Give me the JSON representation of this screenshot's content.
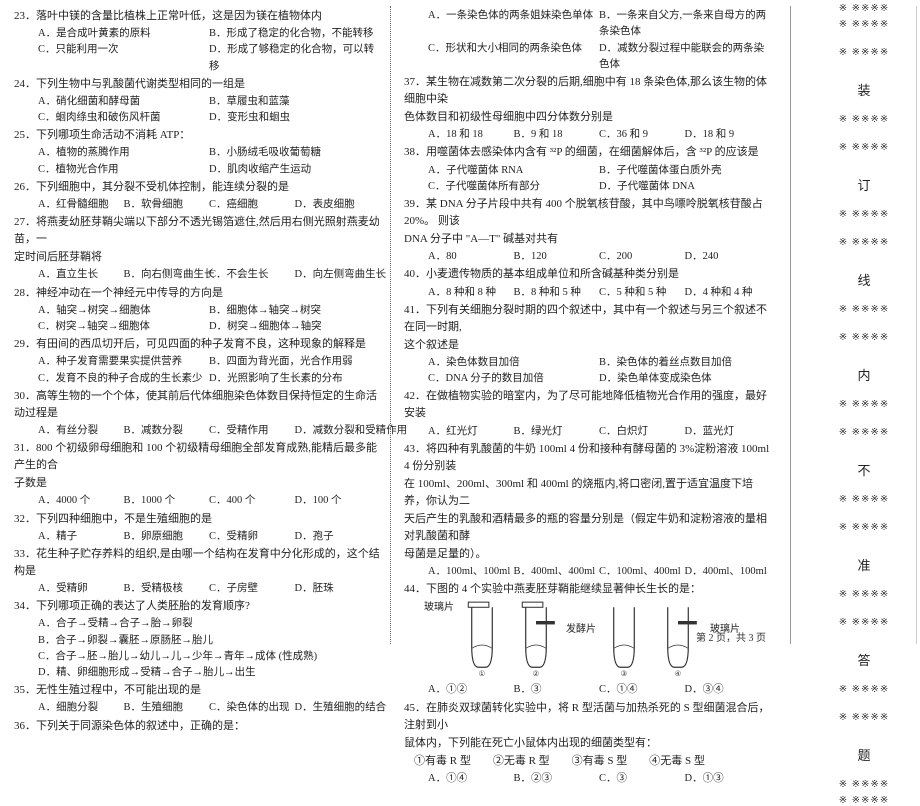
{
  "footer": "第 2 页，共 3 页",
  "margin": {
    "dot": "※ ※※※※",
    "chars": [
      "装",
      "订",
      "线",
      "内",
      "不",
      "准",
      "答",
      "题"
    ]
  },
  "left": [
    {
      "t": "q",
      "txt": "23．落叶中镁的含量比植株上正常叶低，这是因为镁在植物体内"
    },
    {
      "t": "o",
      "cols": 2,
      "items": [
        "A．是合成叶黄素的原料",
        "B．形成了稳定的化合物，不能转移",
        "C．只能利用一次",
        "D．形成了够稳定的化合物，可以转移"
      ]
    },
    {
      "t": "q",
      "txt": "24．下列生物中与乳酸菌代谢类型相同的一组是"
    },
    {
      "t": "o",
      "cols": 2,
      "items": [
        "A．硝化细菌和酵母菌",
        "B．草履虫和蓝藻",
        "C．蛔肉绦虫和破伤风杆菌",
        "D．变形虫和蛔虫"
      ]
    },
    {
      "t": "q",
      "txt": "25．下列哪项生命活动不消耗 ATP："
    },
    {
      "t": "o",
      "cols": 2,
      "items": [
        "A．植物的蒸腾作用",
        "B．小肠绒毛吸收葡萄糖",
        "C．植物光合作用",
        "D．肌肉收缩产生运动"
      ]
    },
    {
      "t": "q",
      "txt": "26．下列细胞中，其分裂不受机体控制，能连续分裂的是"
    },
    {
      "t": "o",
      "cols": 4,
      "items": [
        "A．红骨髓细胞",
        "B．软骨细胞",
        "C．癌细胞",
        "D．表皮细胞"
      ]
    },
    {
      "t": "q",
      "txt": "27．将燕麦幼胚芽鞘尖端以下部分不透光锡箔遮住,然后用右侧光照射燕麦幼苗，一"
    },
    {
      "t": "q",
      "txt": "定时间后胚芽鞘将"
    },
    {
      "t": "o",
      "cols": 4,
      "items": [
        "A．直立生长",
        "B．向右侧弯曲生长",
        "C．不会生长",
        "D．向左侧弯曲生长"
      ]
    },
    {
      "t": "q",
      "txt": "28．神经冲动在一个神经元中传导的方向是"
    },
    {
      "t": "o",
      "cols": 2,
      "items": [
        "A．轴突→树突→细胞体",
        "B．细胞体→轴突→树突",
        "C．树突→轴突→细胞体",
        "D．树突→细胞体→轴突"
      ]
    },
    {
      "t": "q",
      "txt": "29．有田间的西瓜切开后，可见四面的种子发育不良，这种现象的解释是"
    },
    {
      "t": "o",
      "cols": 2,
      "items": [
        "A．种子发育需要果实提供营养",
        "B．四面为背光面，光合作用弱",
        "C．发育不良的种子合成的生长素少",
        "D．光照影响了生长素的分布"
      ]
    },
    {
      "t": "q",
      "txt": "30．高等生物的一个个体，使其前后代体细胞染色体数目保持恒定的生命活动过程是"
    },
    {
      "t": "o",
      "cols": 4,
      "items": [
        "A．有丝分裂",
        "B．减数分裂",
        "C．受精作用",
        "D．减数分裂和受精作用"
      ]
    },
    {
      "t": "q",
      "txt": "31．800 个初级卵母细胞和 100 个初级精母细胞全部发育成熟,能精后最多能产生的合"
    },
    {
      "t": "q",
      "txt": "子数是"
    },
    {
      "t": "o",
      "cols": 4,
      "items": [
        "A．4000 个",
        "B．1000 个",
        "C．400 个",
        "D．100 个"
      ]
    },
    {
      "t": "q",
      "txt": "32．下列四种细胞中，不是生殖细胞的是"
    },
    {
      "t": "o",
      "cols": 4,
      "items": [
        "A．精子",
        "B．卵原细胞",
        "C．受精卵",
        "D．孢子"
      ]
    },
    {
      "t": "q",
      "txt": "33．花生种子贮存养料的组织,是由哪一个结构在发育中分化形成的，这个结构是"
    },
    {
      "t": "o",
      "cols": 4,
      "items": [
        "A．受精卵",
        "B．受精极核",
        "C．子房壁",
        "D．胚珠"
      ]
    },
    {
      "t": "q",
      "txt": "34．下列哪项正确的表达了人类胚胎的发育顺序?"
    },
    {
      "t": "o",
      "cols": 1,
      "items": [
        "A．合子→受精→合子→胎→卵裂",
        "B．合子→卵裂→囊胚→原肠胚→胎儿",
        "C．合子→胚→胎儿→幼儿→儿→少年→青年→成体 (性成熟)",
        "D．精、卵细胞形成→受精→合子→胎儿→出生"
      ]
    },
    {
      "t": "q",
      "txt": "35．无性生殖过程中，不可能出现的是"
    },
    {
      "t": "o",
      "cols": 4,
      "items": [
        "A．细胞分裂",
        "B．生殖细胞",
        "C．染色体的出现",
        "D．生殖细胞的结合"
      ]
    },
    {
      "t": "q",
      "txt": "36．下列关于同源染色体的叙述中，正确的是："
    }
  ],
  "right": [
    {
      "t": "o",
      "cols": 2,
      "items": [
        "A．一条染色体的两条姐妹染色单体",
        "B．一条来自父方,一条来自母方的两条染色体",
        "C．形状和大小相同的两条染色体",
        "D．减数分裂过程中能联会的两条染色体"
      ]
    },
    {
      "t": "q",
      "txt": "37．某生物在减数第二次分裂的后期,细胞中有 18 条染色体,那么该生物的体细胞中染"
    },
    {
      "t": "q",
      "txt": "色体数目和初级性母细胞中四分体数分别是"
    },
    {
      "t": "o",
      "cols": 4,
      "items": [
        "A．18 和 18",
        "B．9 和 18",
        "C．36 和 9",
        "D．18 和 9"
      ]
    },
    {
      "t": "q",
      "txt": "38．用噬菌体去感染体内含有 ³²P 的细菌，在细菌解体后，含 ³²P 的应该是"
    },
    {
      "t": "o",
      "cols": 2,
      "items": [
        "A．子代噬菌体 RNA",
        "B．子代噬菌体蛋白质外壳",
        "C．子代噬菌体所有部分",
        "D．子代噬菌体 DNA"
      ]
    },
    {
      "t": "q",
      "txt": "39．某 DNA 分子片段中共有 400 个脱氧核苷酸，其中鸟嘌呤脱氧核苷酸占 20%。 则该"
    },
    {
      "t": "q",
      "txt": "DNA 分子中 \"A—T\" 碱基对共有"
    },
    {
      "t": "o",
      "cols": 4,
      "items": [
        "A．80",
        "B．120",
        "C．200",
        "D．240"
      ]
    },
    {
      "t": "q",
      "txt": "40．小麦遗传物质的基本组成单位和所含碱基种类分别是"
    },
    {
      "t": "o",
      "cols": 4,
      "items": [
        "A．8 种和 8 种",
        "B．8 种和 5 种",
        "C．5 种和 5 种",
        "D．4 种和 4 种"
      ]
    },
    {
      "t": "q",
      "txt": "41．下列有关细胞分裂时期的四个叙述中，其中有一个叙述与另三个叙述不在同一时期,"
    },
    {
      "t": "q",
      "txt": "这个叙述是"
    },
    {
      "t": "o",
      "cols": 2,
      "items": [
        "A．染色体数目加倍",
        "B．染色体的着丝点数目加倍",
        "C．DNA 分子的数目加倍",
        "D．染色单体变成染色体"
      ]
    },
    {
      "t": "q",
      "txt": "42．在做植物实验的暗室内，为了尽可能地降低植物光合作用的强度，最好安装"
    },
    {
      "t": "o",
      "cols": 4,
      "items": [
        "A．红光灯",
        "B．绿光灯",
        "C．白炽灯",
        "D．蓝光灯"
      ]
    },
    {
      "t": "q",
      "txt": "43．将四种有乳酸菌的牛奶 100ml 4 份和接种有酵母菌的 3%淀粉溶液 100ml 4 份分别装"
    },
    {
      "t": "q",
      "txt": "在 100ml、200ml、300ml 和 400ml 的烧瓶内,将口密闭,置于适宜温度下培养，你认为二"
    },
    {
      "t": "q",
      "txt": "天后产生的乳酸和酒精最多的瓶的容量分别是（假定牛奶和淀粉溶液的量相对乳酸菌和酵"
    },
    {
      "t": "q",
      "txt": "母菌是足量的）。"
    },
    {
      "t": "o",
      "cols": 4,
      "items": [
        "A．100ml、100ml",
        "B．400ml、400ml",
        "C．100ml、400ml",
        "D．400ml、100ml"
      ]
    },
    {
      "t": "q",
      "txt": "44．下图的 4 个实验中燕麦胚芽鞘能继续显著伸长生长的是："
    },
    {
      "t": "figure",
      "labels": [
        "① 玻璃片",
        "② 发酵片",
        "③",
        "④ 玻璃片"
      ]
    },
    {
      "t": "o",
      "cols": 4,
      "items": [
        "A．①②",
        "B．③",
        "C．①④",
        "D．③④"
      ]
    },
    {
      "t": "q",
      "txt": "45．在肺炎双球菌转化实验中，将 R 型活菌与加热杀死的 S 型细菌混合后，注射到小"
    },
    {
      "t": "q",
      "txt": "鼠体内，下列能在死亡小鼠体内出现的细菌类型有："
    },
    {
      "t": "ind",
      "txt": "①有毒 R 型  ②无毒 R 型  ③有毒 S 型  ④无毒 S 型"
    },
    {
      "t": "o",
      "cols": 4,
      "items": [
        "A．①④",
        "B．②③",
        "C．③",
        "D．①③"
      ]
    }
  ]
}
